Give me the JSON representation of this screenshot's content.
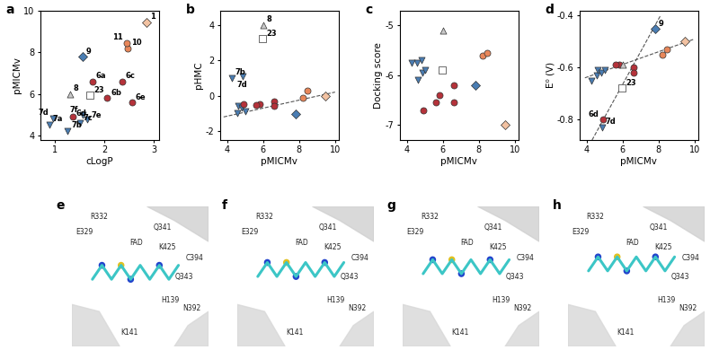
{
  "chart_data": [
    {
      "type": "scatter",
      "title": "a",
      "xlabel": "cLogP",
      "ylabel": "pMICMv",
      "xlim": [
        0.7,
        3.1
      ],
      "ylim": [
        3.8,
        10.0
      ],
      "xticks": [
        1,
        2,
        3
      ],
      "yticks": [
        4,
        6,
        8,
        10
      ],
      "series": [
        {
          "color": "#4a7db3",
          "marker": "triangle_down",
          "x": [
            0.88,
            1.25,
            1.5,
            0.95,
            1.65,
            1.55
          ],
          "values": [
            4.55,
            4.25,
            4.6,
            4.85,
            4.8,
            5.0
          ],
          "point_labels": [
            "7a",
            "7b",
            "7c",
            "7d",
            "7e",
            "7f"
          ]
        },
        {
          "color": "#b5323a",
          "marker": "circle",
          "x": [
            1.75,
            2.05,
            2.35,
            1.35,
            2.55
          ],
          "values": [
            6.6,
            5.8,
            6.6,
            4.9,
            5.6
          ],
          "point_labels": [
            "6a",
            "6b",
            "6c",
            "6d",
            "6e"
          ]
        },
        {
          "color": "#e8875a",
          "marker": "circle",
          "x": [
            2.47,
            2.45
          ],
          "values": [
            8.2,
            8.45
          ],
          "point_labels": [
            "10",
            "11"
          ]
        },
        {
          "color": "#f2c2a2",
          "marker": "diamond",
          "x": [
            2.85
          ],
          "values": [
            9.45
          ],
          "point_labels": [
            "1"
          ]
        },
        {
          "color": "#4a7db3",
          "marker": "diamond",
          "x": [
            1.55
          ],
          "values": [
            7.8
          ],
          "point_labels": [
            "9"
          ]
        },
        {
          "color": "#c8c8c8",
          "marker": "triangle_up",
          "x": [
            1.3
          ],
          "values": [
            6.0
          ],
          "point_labels": [
            "8"
          ]
        },
        {
          "color": "#ffffff",
          "marker": "square",
          "x": [
            1.7
          ],
          "values": [
            5.95
          ],
          "point_labels": [
            "23"
          ]
        }
      ]
    },
    {
      "type": "scatter",
      "title": "b",
      "xlabel": "pMICMv",
      "ylabel": "pHMC",
      "xlim": [
        3.6,
        10.2
      ],
      "ylim": [
        -2.5,
        4.8
      ],
      "xticks": [
        4,
        6,
        8,
        10
      ],
      "yticks": [
        -2,
        0,
        2,
        4
      ],
      "fit_lines": [
        {
          "x": [
            3.8,
            10.0
          ],
          "values": [
            -1.2,
            0.2
          ]
        }
      ],
      "series": [
        {
          "color": "#4a7db3",
          "marker": "triangle_down",
          "x": [
            4.55,
            4.25,
            4.6,
            4.85,
            4.8,
            5.0
          ],
          "values": [
            -1.0,
            1.0,
            -0.6,
            1.1,
            -0.7,
            -0.9
          ],
          "point_labels": [
            null,
            "7b",
            null,
            "7d",
            null,
            null
          ]
        },
        {
          "color": "#b5323a",
          "marker": "circle",
          "x": [
            6.6,
            5.8,
            6.6,
            4.9,
            5.6
          ],
          "values": [
            -0.3,
            -0.5,
            -0.6,
            -0.5,
            -0.55
          ],
          "point_labels": [
            null,
            null,
            null,
            null,
            null
          ]
        },
        {
          "color": "#e8875a",
          "marker": "circle",
          "x": [
            8.2,
            8.45
          ],
          "values": [
            -0.1,
            0.3
          ],
          "point_labels": [
            null,
            null
          ]
        },
        {
          "color": "#f2c2a2",
          "marker": "diamond",
          "x": [
            9.45
          ],
          "values": [
            0.0
          ],
          "point_labels": [
            null
          ]
        },
        {
          "color": "#4a7db3",
          "marker": "diamond",
          "x": [
            7.8
          ],
          "values": [
            -1.05
          ],
          "point_labels": [
            null
          ]
        },
        {
          "color": "#c8c8c8",
          "marker": "triangle_up",
          "x": [
            6.0
          ],
          "values": [
            4.0
          ],
          "point_labels": [
            "8"
          ]
        },
        {
          "color": "#ffffff",
          "marker": "square",
          "x": [
            5.95
          ],
          "values": [
            3.2
          ],
          "point_labels": [
            "23"
          ]
        }
      ]
    },
    {
      "type": "scatter",
      "title": "c",
      "xlabel": "pMICMv",
      "ylabel": "Docking score",
      "xlim": [
        3.6,
        10.2
      ],
      "ylim": [
        -7.3,
        -4.7
      ],
      "xticks": [
        4,
        6,
        8,
        10
      ],
      "yticks": [
        -7,
        -6,
        -5
      ],
      "series": [
        {
          "color": "#4a7db3",
          "marker": "triangle_down",
          "x": [
            4.55,
            4.25,
            4.6,
            4.85,
            4.8,
            5.0
          ],
          "values": [
            -5.75,
            -5.75,
            -6.1,
            -5.95,
            -5.7,
            -5.9
          ],
          "point_labels": [
            null,
            null,
            null,
            null,
            null,
            null
          ]
        },
        {
          "color": "#b5323a",
          "marker": "circle",
          "x": [
            6.6,
            5.8,
            6.6,
            4.9,
            5.6
          ],
          "values": [
            -6.2,
            -6.4,
            -6.55,
            -6.7,
            -6.55
          ],
          "point_labels": [
            null,
            null,
            null,
            null,
            null
          ]
        },
        {
          "color": "#e8875a",
          "marker": "circle",
          "x": [
            8.2,
            8.45
          ],
          "values": [
            -5.6,
            -5.55
          ],
          "point_labels": [
            null,
            null
          ]
        },
        {
          "color": "#f2c2a2",
          "marker": "diamond",
          "x": [
            9.45
          ],
          "values": [
            -7.0
          ],
          "point_labels": [
            null
          ]
        },
        {
          "color": "#4a7db3",
          "marker": "diamond",
          "x": [
            7.8
          ],
          "values": [
            -6.2
          ],
          "point_labels": [
            null
          ]
        },
        {
          "color": "#c8c8c8",
          "marker": "triangle_up",
          "x": [
            6.0
          ],
          "values": [
            -5.1
          ],
          "point_labels": [
            null
          ]
        },
        {
          "color": "#ffffff",
          "marker": "square",
          "x": [
            5.95
          ],
          "values": [
            -5.9
          ],
          "point_labels": [
            null
          ]
        }
      ]
    },
    {
      "type": "scatter",
      "title": "d",
      "xlabel": "pMICMv",
      "ylabel": "E⁰ (V)",
      "xlim": [
        3.6,
        10.2
      ],
      "ylim": [
        -0.88,
        -0.38
      ],
      "xticks": [
        4,
        6,
        8,
        10
      ],
      "yticks": [
        -0.8,
        -0.6,
        -0.4
      ],
      "fit_lines": [
        {
          "x": [
            3.9,
            10.0
          ],
          "values": [
            -0.64,
            -0.49
          ]
        },
        {
          "x": [
            4.3,
            8.1
          ],
          "values": [
            -0.88,
            -0.4
          ]
        }
      ],
      "series": [
        {
          "color": "#4a7db3",
          "marker": "triangle_down",
          "x": [
            4.55,
            4.25,
            4.6,
            4.85,
            4.8,
            5.0
          ],
          "values": [
            -0.63,
            -0.65,
            -0.61,
            -0.83,
            -0.62,
            -0.61
          ],
          "point_labels": [
            null,
            null,
            null,
            "7d",
            null,
            null
          ]
        },
        {
          "color": "#b5323a",
          "marker": "circle",
          "x": [
            6.6,
            5.8,
            6.6,
            4.9,
            5.6
          ],
          "values": [
            -0.6,
            -0.59,
            -0.62,
            -0.8,
            -0.59
          ],
          "point_labels": [
            null,
            null,
            null,
            "6d",
            null
          ]
        },
        {
          "color": "#e8875a",
          "marker": "circle",
          "x": [
            8.2,
            8.45
          ],
          "values": [
            -0.55,
            -0.53
          ],
          "point_labels": [
            null,
            null
          ]
        },
        {
          "color": "#f2c2a2",
          "marker": "diamond",
          "x": [
            9.45
          ],
          "values": [
            -0.5
          ],
          "point_labels": [
            null
          ]
        },
        {
          "color": "#4a7db3",
          "marker": "diamond",
          "x": [
            7.8
          ],
          "values": [
            -0.45
          ],
          "point_labels": [
            "9"
          ]
        },
        {
          "color": "#c8c8c8",
          "marker": "triangle_up",
          "x": [
            6.0
          ],
          "values": [
            -0.59
          ],
          "point_labels": [
            null
          ]
        },
        {
          "color": "#ffffff",
          "marker": "square",
          "x": [
            5.95
          ],
          "values": [
            -0.68
          ],
          "point_labels": [
            "23"
          ]
        }
      ]
    }
  ],
  "structure_panels": [
    {
      "title": "e",
      "labels": [
        "R332",
        "E329",
        "Q341",
        "FAD",
        "K425",
        "C394",
        "Q343",
        "H139",
        "N392",
        "K141"
      ]
    },
    {
      "title": "f",
      "labels": [
        "R332",
        "E329",
        "Q341",
        "FAD",
        "K425",
        "C394",
        "Q343",
        "H139",
        "N392",
        "K141"
      ]
    },
    {
      "title": "g",
      "labels": [
        "R332",
        "E329",
        "Q341",
        "FAD",
        "K425",
        "C394",
        "Q343",
        "H139",
        "N392",
        "K141"
      ]
    },
    {
      "title": "h",
      "labels": [
        "R332",
        "E329",
        "Q341",
        "FAD",
        "K425",
        "C394",
        "Q343",
        "H139",
        "N392",
        "K141"
      ]
    }
  ]
}
